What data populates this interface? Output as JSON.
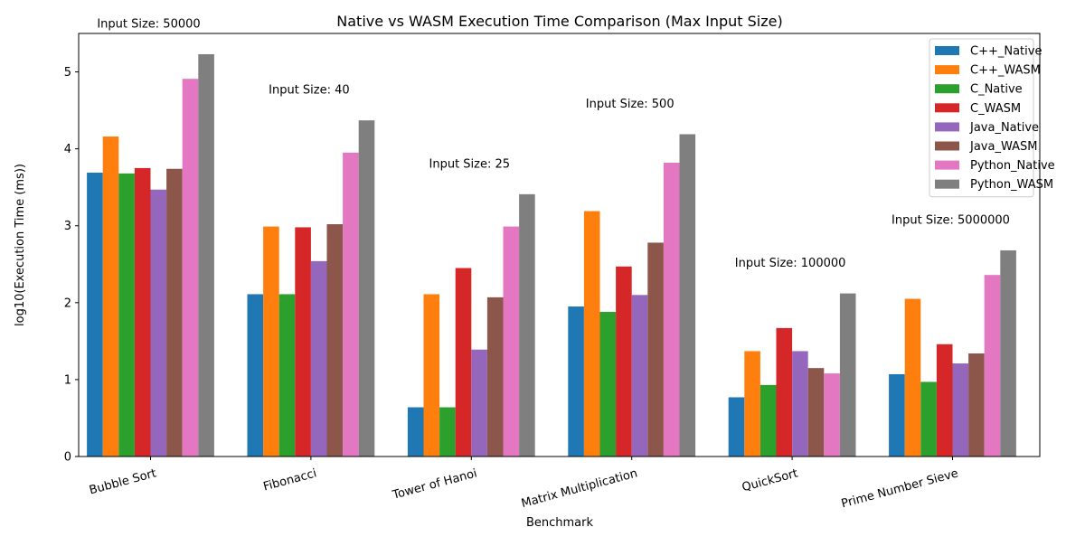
{
  "chart_data": {
    "type": "bar",
    "title": "Native vs WASM Execution Time Comparison (Max Input Size)",
    "xlabel": "Benchmark",
    "ylabel": "log10(Execution Time (ms))",
    "ylim": [
      0,
      5.5
    ],
    "yticks": [
      0,
      1,
      2,
      3,
      4,
      5
    ],
    "legend_position": "top-right",
    "grid": false,
    "categories": [
      "Bubble Sort",
      "Fibonacci",
      "Tower of Hanoi",
      "Matrix Multiplication",
      "QuickSort",
      "Prime Number Sieve"
    ],
    "annotations": [
      "Input Size: 50000",
      "Input Size: 40",
      "Input Size: 25",
      "Input Size: 500",
      "Input Size: 100000",
      "Input Size: 5000000"
    ],
    "series": [
      {
        "name": "C++_Native",
        "color": "#1f77b4",
        "values": [
          3.69,
          2.11,
          0.64,
          1.95,
          0.77,
          1.07
        ]
      },
      {
        "name": "C++_WASM",
        "color": "#ff7f0e",
        "values": [
          4.16,
          2.99,
          2.11,
          3.19,
          1.37,
          2.05
        ]
      },
      {
        "name": "C_Native",
        "color": "#2ca02c",
        "values": [
          3.68,
          2.11,
          0.64,
          1.88,
          0.93,
          0.97
        ]
      },
      {
        "name": "C_WASM",
        "color": "#d62728",
        "values": [
          3.75,
          2.98,
          2.45,
          2.47,
          1.67,
          1.46
        ]
      },
      {
        "name": "Java_Native",
        "color": "#9467bd",
        "values": [
          3.47,
          2.54,
          1.39,
          2.1,
          1.37,
          1.21
        ]
      },
      {
        "name": "Java_WASM",
        "color": "#8c564b",
        "values": [
          3.74,
          3.02,
          2.07,
          2.78,
          1.15,
          1.34
        ]
      },
      {
        "name": "Python_Native",
        "color": "#e377c2",
        "values": [
          4.91,
          3.95,
          2.99,
          3.82,
          1.08,
          2.36
        ]
      },
      {
        "name": "Python_WASM",
        "color": "#7f7f7f",
        "values": [
          5.23,
          4.37,
          3.41,
          4.19,
          2.12,
          2.68
        ]
      }
    ]
  }
}
